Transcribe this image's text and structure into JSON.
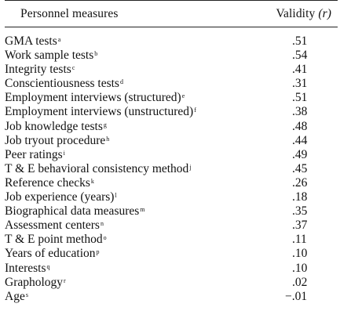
{
  "header": {
    "measures_label": "Personnel measures",
    "validity_label": "Validity",
    "validity_symbol": "(r)"
  },
  "rows": [
    {
      "label": "GMA tests",
      "note": "a",
      "value": ".51"
    },
    {
      "label": "Work sample tests",
      "note": "b",
      "value": ".54"
    },
    {
      "label": "Integrity tests",
      "note": "c",
      "value": ".41"
    },
    {
      "label": "Conscientiousness tests",
      "note": "d",
      "value": ".31"
    },
    {
      "label": "Employment interviews (structured)",
      "note": "e",
      "value": ".51"
    },
    {
      "label": "Employment interviews (unstructured)",
      "note": "f",
      "value": ".38"
    },
    {
      "label": "Job knowledge tests",
      "note": "g",
      "value": ".48"
    },
    {
      "label": "Job tryout procedure",
      "note": "h",
      "value": ".44"
    },
    {
      "label": "Peer ratings",
      "note": "i",
      "value": ".49"
    },
    {
      "label": "T & E behavioral consistency method",
      "note": "j",
      "value": ".45"
    },
    {
      "label": "Reference checks",
      "note": "k",
      "value": ".26"
    },
    {
      "label": "Job experience (years)",
      "note": "l",
      "value": ".18"
    },
    {
      "label": "Biographical data measures",
      "note": "m",
      "value": ".35"
    },
    {
      "label": "Assessment centers",
      "note": "n",
      "value": ".37"
    },
    {
      "label": "T & E point method",
      "note": "o",
      "value": ".11"
    },
    {
      "label": "Years of education",
      "note": "p",
      "value": ".10"
    },
    {
      "label": "Interests",
      "note": "q",
      "value": ".10"
    },
    {
      "label": "Graphology",
      "note": "r",
      "value": ".02"
    },
    {
      "label": "Age",
      "note": "s",
      "value": "−.01"
    }
  ]
}
